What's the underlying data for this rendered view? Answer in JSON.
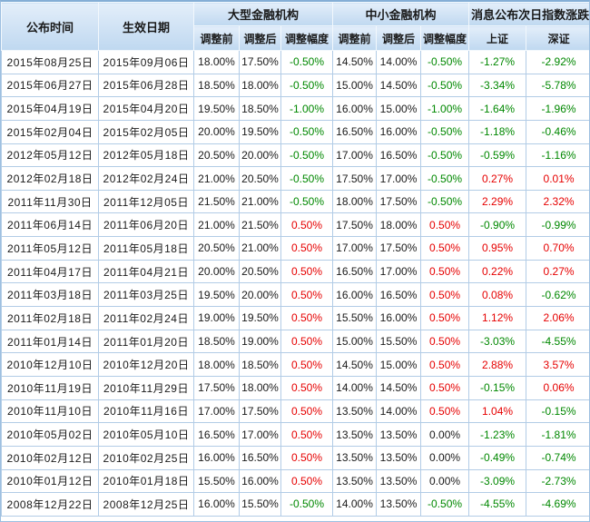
{
  "colors": {
    "negative": "#008800",
    "positive": "#e60000",
    "neutral_text": "#1a1a1a",
    "cell_border": "#b2cce6",
    "header_bg_top": "#e3eefa",
    "header_bg_bottom": "#bfd8f0",
    "outer_border": "#9dbfe0"
  },
  "table": {
    "headers": {
      "publish_time": "公布时间",
      "effective_date": "生效日期",
      "large_institutions": "大型金融机构",
      "small_institutions": "中小金融机构",
      "index_change": "消息公布次日指数涨跌",
      "before": "调整前",
      "after": "调整后",
      "change": "调整幅度",
      "shanghai": "上证",
      "shenzhen": "深证"
    },
    "rows": [
      [
        "2015年08月25日",
        "2015年09月06日",
        "18.00%",
        "17.50%",
        "-0.50%",
        "14.50%",
        "14.00%",
        "-0.50%",
        "-1.27%",
        "-2.92%"
      ],
      [
        "2015年06月27日",
        "2015年06月28日",
        "18.50%",
        "18.00%",
        "-0.50%",
        "15.00%",
        "14.50%",
        "-0.50%",
        "-3.34%",
        "-5.78%"
      ],
      [
        "2015年04月19日",
        "2015年04月20日",
        "19.50%",
        "18.50%",
        "-1.00%",
        "16.00%",
        "15.00%",
        "-1.00%",
        "-1.64%",
        "-1.96%"
      ],
      [
        "2015年02月04日",
        "2015年02月05日",
        "20.00%",
        "19.50%",
        "-0.50%",
        "16.50%",
        "16.00%",
        "-0.50%",
        "-1.18%",
        "-0.46%"
      ],
      [
        "2012年05月12日",
        "2012年05月18日",
        "20.50%",
        "20.00%",
        "-0.50%",
        "17.00%",
        "16.50%",
        "-0.50%",
        "-0.59%",
        "-1.16%"
      ],
      [
        "2012年02月18日",
        "2012年02月24日",
        "21.00%",
        "20.50%",
        "-0.50%",
        "17.50%",
        "17.00%",
        "-0.50%",
        "0.27%",
        "0.01%"
      ],
      [
        "2011年11月30日",
        "2011年12月05日",
        "21.50%",
        "21.00%",
        "-0.50%",
        "18.00%",
        "17.50%",
        "-0.50%",
        "2.29%",
        "2.32%"
      ],
      [
        "2011年06月14日",
        "2011年06月20日",
        "21.00%",
        "21.50%",
        "0.50%",
        "17.50%",
        "18.00%",
        "0.50%",
        "-0.90%",
        "-0.99%"
      ],
      [
        "2011年05月12日",
        "2011年05月18日",
        "20.50%",
        "21.00%",
        "0.50%",
        "17.00%",
        "17.50%",
        "0.50%",
        "0.95%",
        "0.70%"
      ],
      [
        "2011年04月17日",
        "2011年04月21日",
        "20.00%",
        "20.50%",
        "0.50%",
        "16.50%",
        "17.00%",
        "0.50%",
        "0.22%",
        "0.27%"
      ],
      [
        "2011年03月18日",
        "2011年03月25日",
        "19.50%",
        "20.00%",
        "0.50%",
        "16.00%",
        "16.50%",
        "0.50%",
        "0.08%",
        "-0.62%"
      ],
      [
        "2011年02月18日",
        "2011年02月24日",
        "19.00%",
        "19.50%",
        "0.50%",
        "15.50%",
        "16.00%",
        "0.50%",
        "1.12%",
        "2.06%"
      ],
      [
        "2011年01月14日",
        "2011年01月20日",
        "18.50%",
        "19.00%",
        "0.50%",
        "15.00%",
        "15.50%",
        "0.50%",
        "-3.03%",
        "-4.55%"
      ],
      [
        "2010年12月10日",
        "2010年12月20日",
        "18.00%",
        "18.50%",
        "0.50%",
        "14.50%",
        "15.00%",
        "0.50%",
        "2.88%",
        "3.57%"
      ],
      [
        "2010年11月19日",
        "2010年11月29日",
        "17.50%",
        "18.00%",
        "0.50%",
        "14.00%",
        "14.50%",
        "0.50%",
        "-0.15%",
        "0.06%"
      ],
      [
        "2010年11月10日",
        "2010年11月16日",
        "17.00%",
        "17.50%",
        "0.50%",
        "13.50%",
        "14.00%",
        "0.50%",
        "1.04%",
        "-0.15%"
      ],
      [
        "2010年05月02日",
        "2010年05月10日",
        "16.50%",
        "17.00%",
        "0.50%",
        "13.50%",
        "13.50%",
        "0.00%",
        "-1.23%",
        "-1.81%"
      ],
      [
        "2010年02月12日",
        "2010年02月25日",
        "16.00%",
        "16.50%",
        "0.50%",
        "13.50%",
        "13.50%",
        "0.00%",
        "-0.49%",
        "-0.74%"
      ],
      [
        "2010年01月12日",
        "2010年01月18日",
        "15.50%",
        "16.00%",
        "0.50%",
        "13.50%",
        "13.50%",
        "0.00%",
        "-3.09%",
        "-2.73%"
      ],
      [
        "2008年12月22日",
        "2008年12月25日",
        "16.00%",
        "15.50%",
        "-0.50%",
        "14.00%",
        "13.50%",
        "-0.50%",
        "-4.55%",
        "-4.69%"
      ]
    ]
  }
}
